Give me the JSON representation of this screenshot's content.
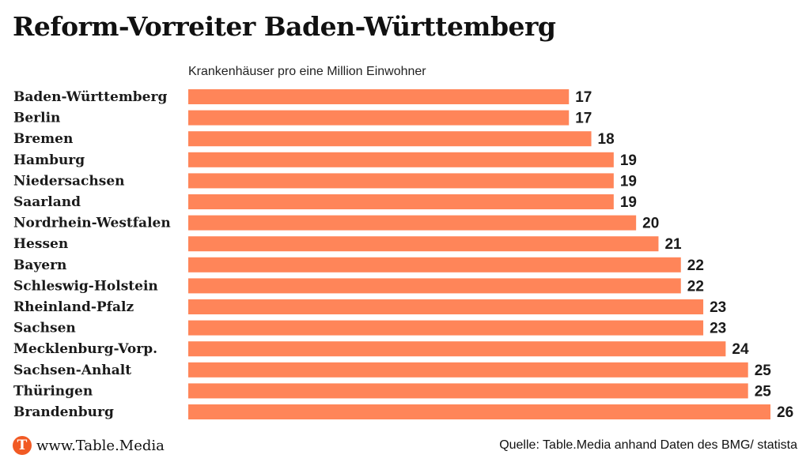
{
  "title": "Reform-Vorreiter Baden-Württemberg",
  "chart_data": {
    "type": "bar",
    "orientation": "horizontal",
    "subtitle": "Krankenhäuser pro eine Million Einwohner",
    "categories": [
      "Baden-Württemberg",
      "Berlin",
      "Bremen",
      "Hamburg",
      "Niedersachsen",
      "Saarland",
      "Nordrhein-Westfalen",
      "Hessen",
      "Bayern",
      "Schleswig-Holstein",
      "Rheinland-Pfalz",
      "Sachsen",
      "Mecklenburg-Vorp.",
      "Sachsen-Anhalt",
      "Thüringen",
      "Brandenburg"
    ],
    "values": [
      17,
      17,
      18,
      19,
      19,
      19,
      20,
      21,
      22,
      22,
      23,
      23,
      24,
      25,
      25,
      26
    ],
    "xlim": [
      0,
      26
    ],
    "bar_color": "#ff8559",
    "grid": false,
    "legend": "none"
  },
  "footer": {
    "logo_letter": "T",
    "site": "www.Table.Media",
    "source": "Quelle: Table.Media anhand Daten des BMG/ statista",
    "logo_color": "#f15a24"
  }
}
